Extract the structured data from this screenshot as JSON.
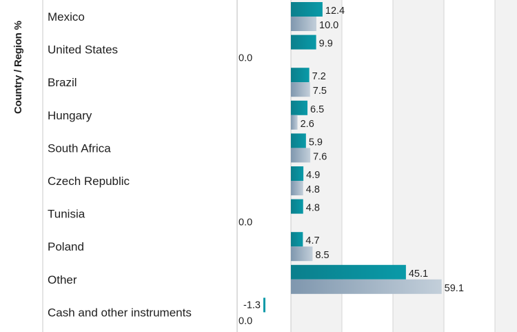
{
  "chart_data": {
    "type": "bar",
    "orientation": "horizontal",
    "ylabel": "Country / Region %",
    "categories": [
      "Mexico",
      "United States",
      "Brazil",
      "Hungary",
      "South Africa",
      "Czech Republic",
      "Tunisia",
      "Poland",
      "Other",
      "Cash and other instruments"
    ],
    "series": [
      {
        "values": [
          12.4,
          9.9,
          7.2,
          6.5,
          5.9,
          4.9,
          4.8,
          4.7,
          45.1,
          -1.3
        ],
        "labels": [
          "12.4",
          "9.9",
          "7.2",
          "6.5",
          "5.9",
          "4.9",
          "4.8",
          "4.7",
          "45.1",
          "-1.3"
        ],
        "color": "#0a9aa8"
      },
      {
        "values": [
          10.0,
          0.0,
          7.5,
          2.6,
          7.6,
          4.8,
          0.0,
          8.5,
          59.1,
          0.0
        ],
        "labels": [
          "10.0",
          "0.0",
          "7.5",
          "2.6",
          "7.6",
          "4.8",
          "0.0",
          "8.5",
          "59.1",
          "0.0"
        ],
        "color": "#a5b6c7"
      }
    ],
    "xlim": [
      -20,
      100
    ],
    "grid": true,
    "colors": {
      "teal": "#0a9aa8",
      "teal_dark": "#0b7f8c",
      "steel": "#a5b6c7",
      "steel_dark": "#7f97ae",
      "band": "#f2f2f2",
      "gridline": "#d4d4d4"
    }
  }
}
